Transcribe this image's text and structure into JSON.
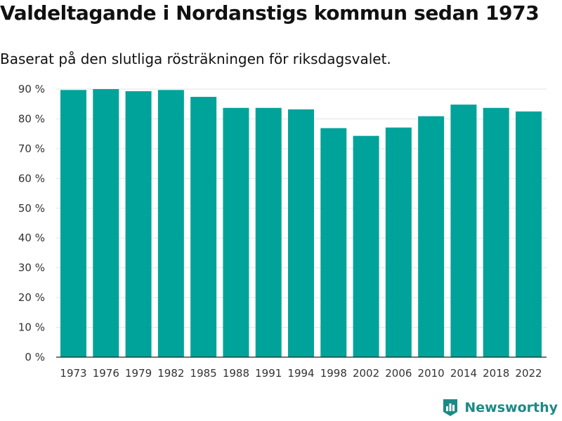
{
  "chart_data": {
    "type": "bar",
    "title": "Valdeltagande i Nordanstigs kommun sedan 1973",
    "subtitle": "Baserat på den slutliga rösträkningen för riksdagsvalet.",
    "xlabel": "",
    "ylabel": "",
    "categories": [
      "1973",
      "1976",
      "1979",
      "1982",
      "1985",
      "1988",
      "1991",
      "1994",
      "1998",
      "2002",
      "2006",
      "2010",
      "2014",
      "2018",
      "2022"
    ],
    "values": [
      89.7,
      90.0,
      89.3,
      89.7,
      87.4,
      83.7,
      83.7,
      83.2,
      76.9,
      74.3,
      77.1,
      80.9,
      84.8,
      83.7,
      82.5
    ],
    "ylim": [
      0,
      90
    ],
    "yticks": [
      0,
      10,
      20,
      30,
      40,
      50,
      60,
      70,
      80,
      90
    ],
    "ytick_labels": [
      "0 %",
      "10 %",
      "20 %",
      "30 %",
      "40 %",
      "50 %",
      "60 %",
      "70 %",
      "80 %",
      "90 %"
    ],
    "grid": true,
    "bar_color": "#00a39a"
  },
  "brand": {
    "name": "Newsworthy",
    "logo_icon": "bar-chart-icon",
    "color": "#1b8a86"
  }
}
